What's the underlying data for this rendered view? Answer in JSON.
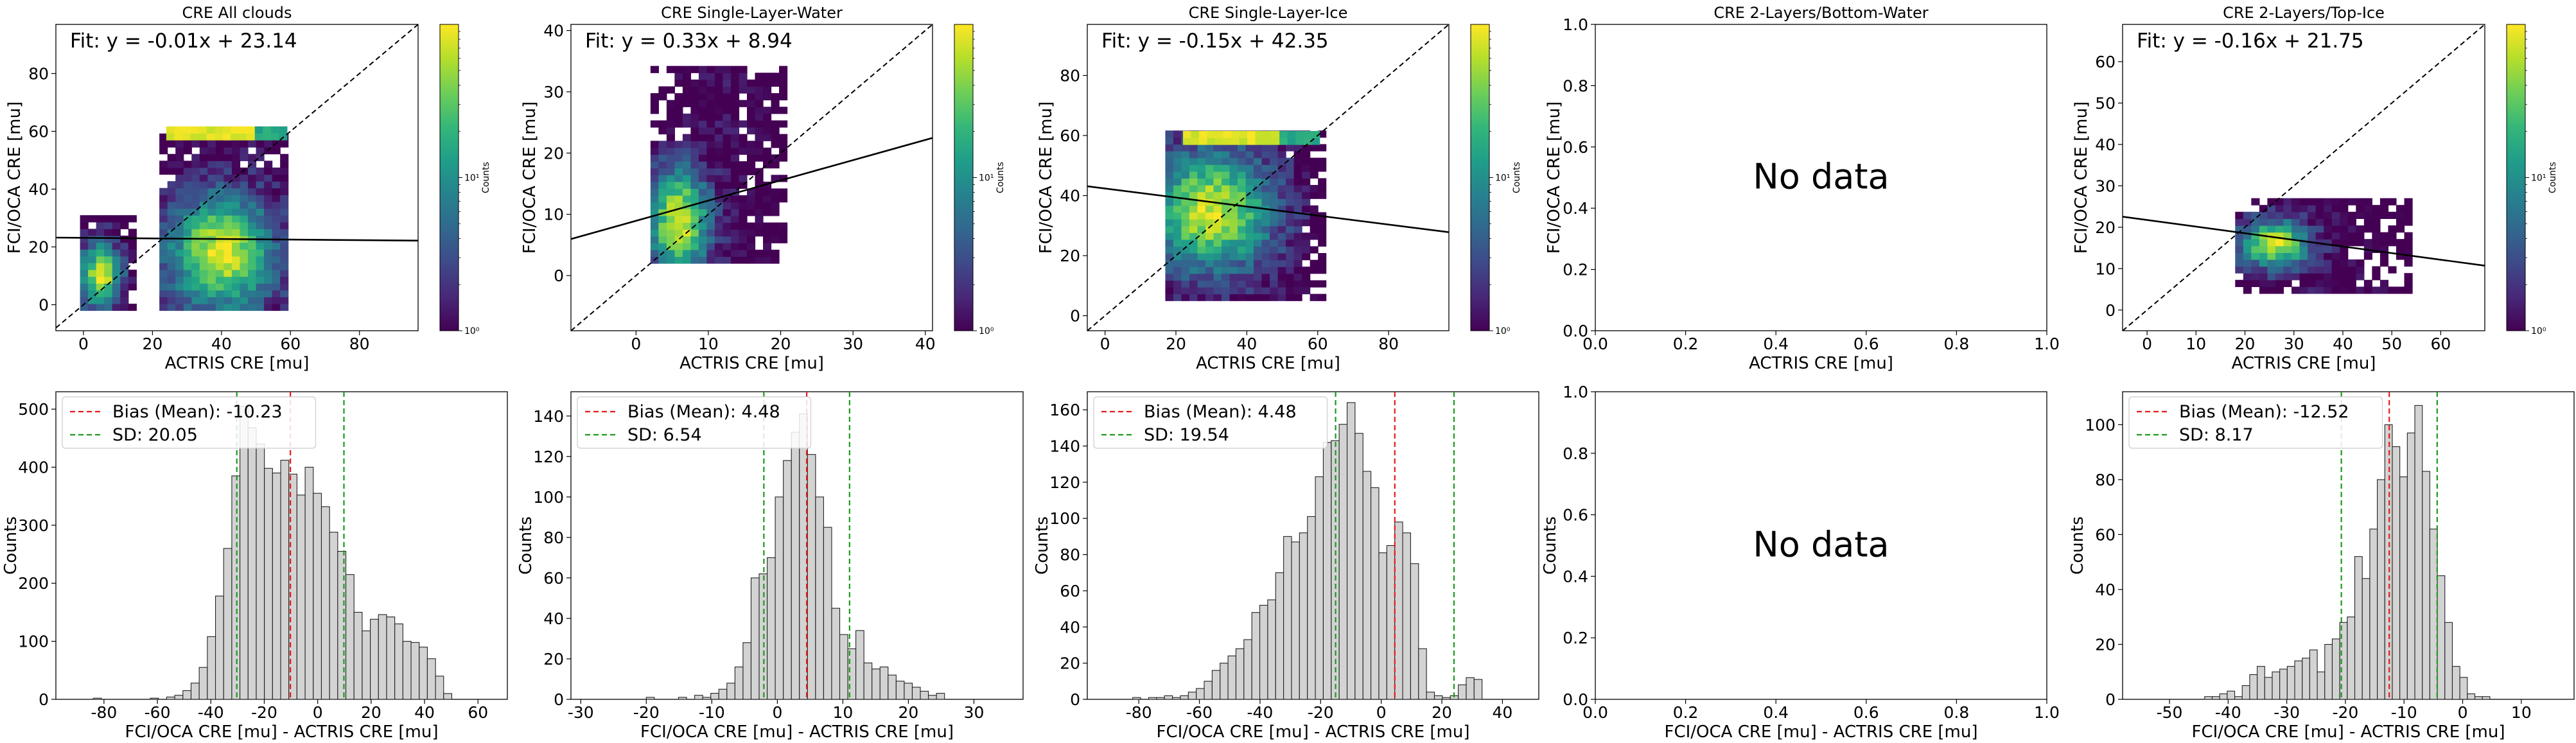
{
  "figure": {
    "colorbar_label": "Counts",
    "colorbar_ticks": [
      "10⁰",
      "10¹"
    ]
  },
  "colors": {
    "hist_fill": "#d3d3d3",
    "hist_edge": "#222222",
    "bias_line": "#e41a1c",
    "sd_line": "#1a9a1a",
    "fit_line": "#000000",
    "one_to_one": "#000000",
    "viridis": [
      "#440154",
      "#482878",
      "#3e4a89",
      "#31688e",
      "#26828e",
      "#1f9e89",
      "#35b779",
      "#6ece58",
      "#b5de2b",
      "#fde725"
    ]
  },
  "chart_data": [
    {
      "type": "heatmap",
      "title": "CRE All clouds",
      "xlabel": "ACTRIS CRE [mu]",
      "ylabel": "FCI/OCA CRE [mu]",
      "xlim": [
        -8,
        97
      ],
      "ylim": [
        -9,
        97
      ],
      "xticks": [
        0,
        20,
        40,
        60,
        80
      ],
      "yticks": [
        0,
        20,
        40,
        60,
        80
      ],
      "fit": "Fit: y = -0.01x + 23.14",
      "fit_slope": -0.01,
      "fit_intercept": 23.14,
      "one_to_one": true,
      "colorbar": true,
      "clusters": [
        {
          "x": [
            22,
            59
          ],
          "y": [
            -2,
            60
          ],
          "cx": 40,
          "cy": 18,
          "sx": 11,
          "sy": 14
        },
        {
          "x": [
            -1,
            14
          ],
          "y": [
            -2,
            30
          ],
          "cx": 5,
          "cy": 10,
          "sx": 4,
          "sy": 8
        },
        {
          "x": [
            24,
            58
          ],
          "y": [
            57,
            61
          ],
          "cx": 38,
          "cy": 59,
          "sx": 60,
          "sy": 60
        }
      ]
    },
    {
      "type": "heatmap",
      "title": "CRE Single-Layer-Water",
      "xlabel": "ACTRIS CRE [mu]",
      "ylabel": "FCI/OCA CRE [mu]",
      "xlim": [
        -9,
        41
      ],
      "ylim": [
        -9,
        41
      ],
      "xticks": [
        0,
        10,
        20,
        30,
        40
      ],
      "yticks": [
        0,
        10,
        20,
        30,
        40
      ],
      "fit": "Fit: y = 0.33x + 8.94",
      "fit_slope": 0.33,
      "fit_intercept": 8.94,
      "one_to_one": true,
      "colorbar": true,
      "clusters": [
        {
          "x": [
            2,
            20
          ],
          "y": [
            2,
            34
          ],
          "cx": 6,
          "cy": 9,
          "sx": 3,
          "sy": 6
        }
      ]
    },
    {
      "type": "heatmap",
      "title": "CRE Single-Layer-Ice",
      "xlabel": "ACTRIS CRE [mu]",
      "ylabel": "FCI/OCA CRE [mu]",
      "xlim": [
        -5,
        97
      ],
      "ylim": [
        -5,
        97
      ],
      "xticks": [
        0,
        20,
        40,
        60,
        80
      ],
      "yticks": [
        0,
        20,
        40,
        60,
        80
      ],
      "fit": "Fit: y = -0.15x + 42.35",
      "fit_slope": -0.15,
      "fit_intercept": 42.35,
      "one_to_one": true,
      "colorbar": true,
      "clusters": [
        {
          "x": [
            17,
            62
          ],
          "y": [
            5,
            60
          ],
          "cx": 30,
          "cy": 35,
          "sx": 12,
          "sy": 14
        },
        {
          "x": [
            22,
            60
          ],
          "y": [
            57,
            61
          ],
          "cx": 38,
          "cy": 59,
          "sx": 60,
          "sy": 60
        }
      ]
    },
    {
      "type": "empty",
      "title": "CRE 2-Layers/Bottom-Water",
      "xlabel": "ACTRIS CRE [mu]",
      "ylabel": "FCI/OCA CRE [mu]",
      "xlim": [
        0,
        1
      ],
      "ylim": [
        0,
        1
      ],
      "xticks": [
        0.0,
        0.2,
        0.4,
        0.6,
        0.8,
        1.0
      ],
      "yticks": [
        0.0,
        0.2,
        0.4,
        0.6,
        0.8,
        1.0
      ],
      "message": "No data"
    },
    {
      "type": "heatmap",
      "title": "CRE 2-Layers/Top-Ice",
      "xlabel": "ACTRIS CRE [mu]",
      "ylabel": "FCI/OCA CRE [mu]",
      "xlim": [
        -5,
        69
      ],
      "ylim": [
        -5,
        69
      ],
      "xticks": [
        0,
        10,
        20,
        30,
        40,
        50,
        60
      ],
      "yticks": [
        0,
        10,
        20,
        30,
        40,
        50,
        60
      ],
      "fit": "Fit: y = -0.16x + 21.75",
      "fit_slope": -0.16,
      "fit_intercept": 21.75,
      "one_to_one": true,
      "colorbar": true,
      "clusters": [
        {
          "x": [
            18,
            53
          ],
          "y": [
            4,
            27
          ],
          "cx": 26,
          "cy": 16,
          "sx": 5,
          "sy": 4
        }
      ]
    },
    {
      "type": "bar",
      "subtype": "histogram",
      "xlabel": "FCI/OCA CRE [mu] - ACTRIS CRE [mu]",
      "ylabel": "Counts",
      "xlim": [
        -98,
        71
      ],
      "ylim": [
        0,
        530
      ],
      "xticks": [
        -80,
        -60,
        -40,
        -20,
        0,
        20,
        40,
        60
      ],
      "yticks": [
        0,
        100,
        200,
        300,
        400,
        500
      ],
      "bias": -10.23,
      "sd": 20.05,
      "bias_label": "Bias (Mean): -10.23",
      "sd_label": "SD: 20.05",
      "sd_lines": [
        -30.28,
        9.82
      ],
      "bin_start": -84,
      "bin_width": 3.05,
      "values": [
        2,
        0,
        0,
        0,
        0,
        0,
        0,
        2,
        0,
        4,
        7,
        15,
        28,
        55,
        108,
        178,
        260,
        385,
        505,
        468,
        440,
        398,
        390,
        412,
        388,
        352,
        400,
        355,
        332,
        288,
        255,
        215,
        150,
        118,
        138,
        146,
        142,
        130,
        100,
        98,
        90,
        70,
        40,
        10
      ]
    },
    {
      "type": "bar",
      "subtype": "histogram",
      "xlabel": "FCI/OCA CRE [mu] - ACTRIS CRE [mu]",
      "ylabel": "Counts",
      "xlim": [
        -31.5,
        37.5
      ],
      "ylim": [
        0,
        152
      ],
      "xticks": [
        -30,
        -20,
        -10,
        0,
        10,
        20,
        30
      ],
      "yticks": [
        0,
        20,
        40,
        60,
        80,
        100,
        120,
        140
      ],
      "bias": 4.48,
      "sd": 6.54,
      "bias_label": "Bias (Mean): 4.48",
      "sd_label": "SD: 6.54",
      "sd_lines": [
        -2.06,
        11.02
      ],
      "bin_start": -20,
      "bin_width": 1.23,
      "values": [
        1,
        0,
        0,
        0,
        1,
        0,
        2,
        1,
        3,
        5,
        8,
        16,
        28,
        60,
        62,
        70,
        100,
        118,
        132,
        141,
        121,
        100,
        85,
        45,
        32,
        25,
        34,
        18,
        15,
        16,
        12,
        9,
        8,
        6,
        4,
        2,
        3
      ]
    },
    {
      "type": "bar",
      "subtype": "histogram",
      "xlabel": "FCI/OCA CRE [mu] - ACTRIS CRE [mu]",
      "ylabel": "Counts",
      "xlim": [
        -97,
        52
      ],
      "ylim": [
        0,
        170
      ],
      "xticks": [
        -80,
        -60,
        -40,
        -20,
        0,
        20,
        40
      ],
      "yticks": [
        0,
        20,
        40,
        60,
        80,
        100,
        120,
        140,
        160
      ],
      "bias": 4.48,
      "sd": 19.54,
      "bias_label": "Bias (Mean): 4.48",
      "sd_label": "SD: 19.54",
      "sd_lines": [
        -15.06,
        24.02
      ],
      "bin_start": -82,
      "bin_width": 2.62,
      "values": [
        1,
        0,
        1,
        1,
        2,
        1,
        2,
        4,
        6,
        10,
        16,
        20,
        24,
        28,
        33,
        48,
        52,
        55,
        70,
        90,
        87,
        92,
        101,
        123,
        142,
        143,
        152,
        164,
        147,
        126,
        117,
        81,
        85,
        98,
        92,
        75,
        28,
        4,
        2,
        1,
        2,
        8,
        12,
        11
      ]
    },
    {
      "type": "empty",
      "xlabel": "FCI/OCA CRE [mu] - ACTRIS CRE [mu]",
      "ylabel": "Counts",
      "xlim": [
        0,
        1
      ],
      "ylim": [
        0,
        1
      ],
      "xticks": [
        0.0,
        0.2,
        0.4,
        0.6,
        0.8,
        1.0
      ],
      "yticks": [
        0.0,
        0.2,
        0.4,
        0.6,
        0.8,
        1.0
      ],
      "message": "No data"
    },
    {
      "type": "bar",
      "subtype": "histogram",
      "xlabel": "FCI/OCA CRE [mu] - ACTRIS CRE [mu]",
      "ylabel": "Counts",
      "xlim": [
        -58,
        19
      ],
      "ylim": [
        0,
        112
      ],
      "xticks": [
        -50,
        -40,
        -30,
        -20,
        -10,
        0,
        10
      ],
      "yticks": [
        0,
        20,
        40,
        60,
        80,
        100
      ],
      "bias": -12.52,
      "sd": 8.17,
      "bias_label": "Bias (Mean): -12.52",
      "sd_label": "SD: 8.17",
      "sd_lines": [
        -20.69,
        -4.35
      ],
      "bin_start": -44,
      "bin_width": 1.28,
      "values": [
        1,
        1,
        2,
        3,
        1,
        5,
        9,
        12,
        8,
        10,
        11,
        12,
        14,
        15,
        18,
        10,
        20,
        22,
        28,
        30,
        52,
        44,
        62,
        80,
        100,
        92,
        81,
        97,
        107,
        83,
        62,
        45,
        28,
        12,
        8,
        2,
        1,
        1
      ]
    }
  ]
}
